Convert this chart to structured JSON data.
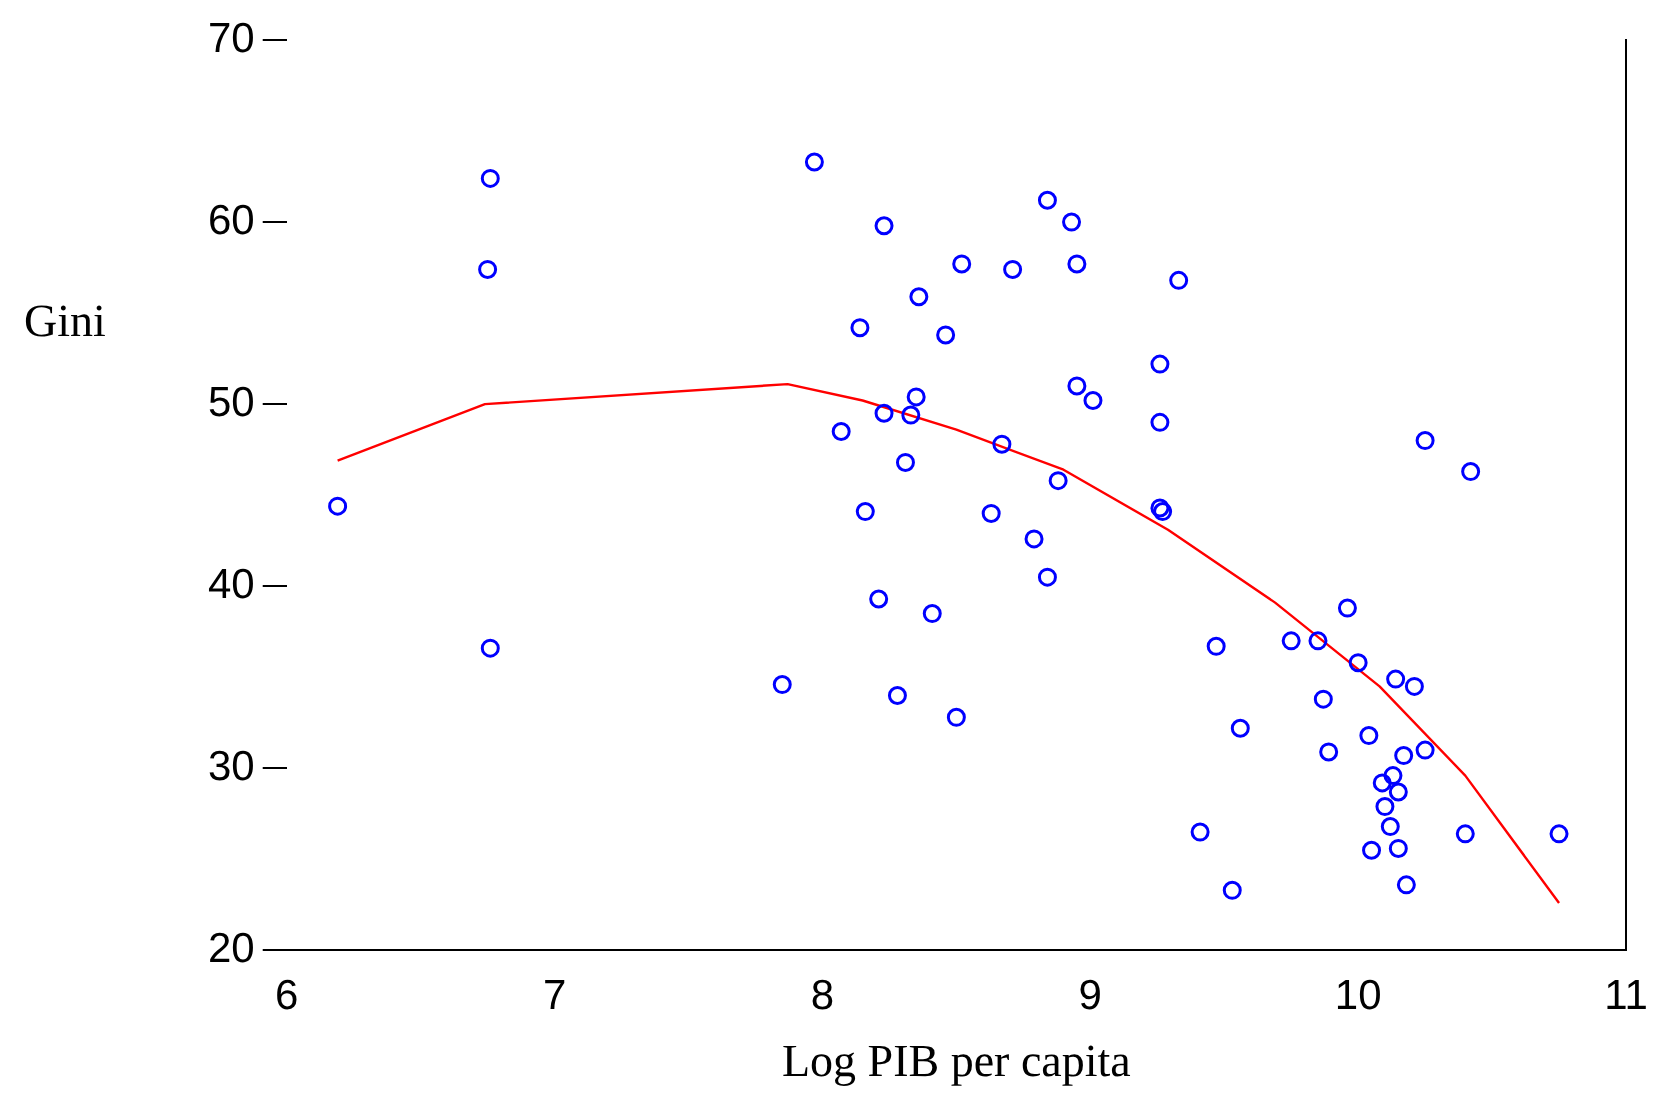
{
  "chart_data": {
    "type": "scatter",
    "xlabel": "Log PIB per capita",
    "ylabel": "Gini",
    "xlim": [
      6,
      11
    ],
    "xticks": [
      6,
      7,
      8,
      9,
      10,
      11
    ],
    "ylim": [
      20,
      70
    ],
    "yticks": [
      20,
      30,
      40,
      50,
      60,
      70
    ],
    "grid": false,
    "legend": false,
    "marker": "circle",
    "series": [
      {
        "color": "#0000ff",
        "x": [
          6.19,
          6.76,
          6.75,
          6.76,
          7.97,
          7.85,
          8.23,
          8.14,
          8.07,
          8.23,
          8.33,
          8.35,
          8.31,
          8.16,
          8.21,
          8.28,
          8.41,
          8.36,
          8.46,
          8.52,
          8.71,
          8.5,
          8.63,
          8.67,
          8.79,
          8.84,
          8.84,
          8.88,
          8.93,
          8.95,
          8.95,
          9.01,
          9.26,
          9.26,
          9.26,
          9.27,
          9.33,
          9.41,
          9.47,
          9.53,
          9.56,
          9.75,
          9.85,
          9.87,
          9.89,
          9.96,
          10.0,
          10.04,
          10.05,
          10.09,
          10.1,
          10.12,
          10.13,
          10.14,
          10.15,
          10.15,
          10.17,
          10.18,
          10.21,
          10.25,
          10.25,
          10.4,
          10.42,
          10.75
        ],
        "values": [
          44.4,
          62.4,
          57.4,
          36.6,
          63.3,
          34.6,
          59.8,
          54.2,
          48.5,
          49.5,
          49.4,
          50.4,
          46.8,
          44.1,
          39.3,
          34.0,
          38.5,
          55.9,
          53.8,
          57.7,
          57.4,
          32.8,
          44.0,
          47.8,
          42.6,
          40.5,
          61.2,
          45.8,
          60.0,
          57.7,
          51.0,
          50.2,
          52.2,
          49.0,
          44.3,
          44.1,
          56.8,
          26.5,
          36.7,
          23.3,
          32.2,
          37.0,
          37.0,
          33.8,
          30.9,
          38.8,
          35.8,
          31.8,
          25.5,
          29.2,
          27.9,
          26.8,
          29.6,
          34.9,
          28.7,
          25.6,
          30.7,
          23.6,
          34.5,
          31.0,
          48.0,
          26.4,
          46.3,
          26.4
        ]
      },
      {
        "type": "line",
        "color": "#ff0000",
        "marker": "none",
        "line_style": "solid",
        "x": [
          6.19,
          6.74,
          7.87,
          8.15,
          8.5,
          8.9,
          9.29,
          9.69,
          10.08,
          10.4,
          10.75
        ],
        "values": [
          46.9,
          50.0,
          51.1,
          50.2,
          48.6,
          46.4,
          43.1,
          39.1,
          34.5,
          29.6,
          22.6
        ]
      }
    ]
  }
}
